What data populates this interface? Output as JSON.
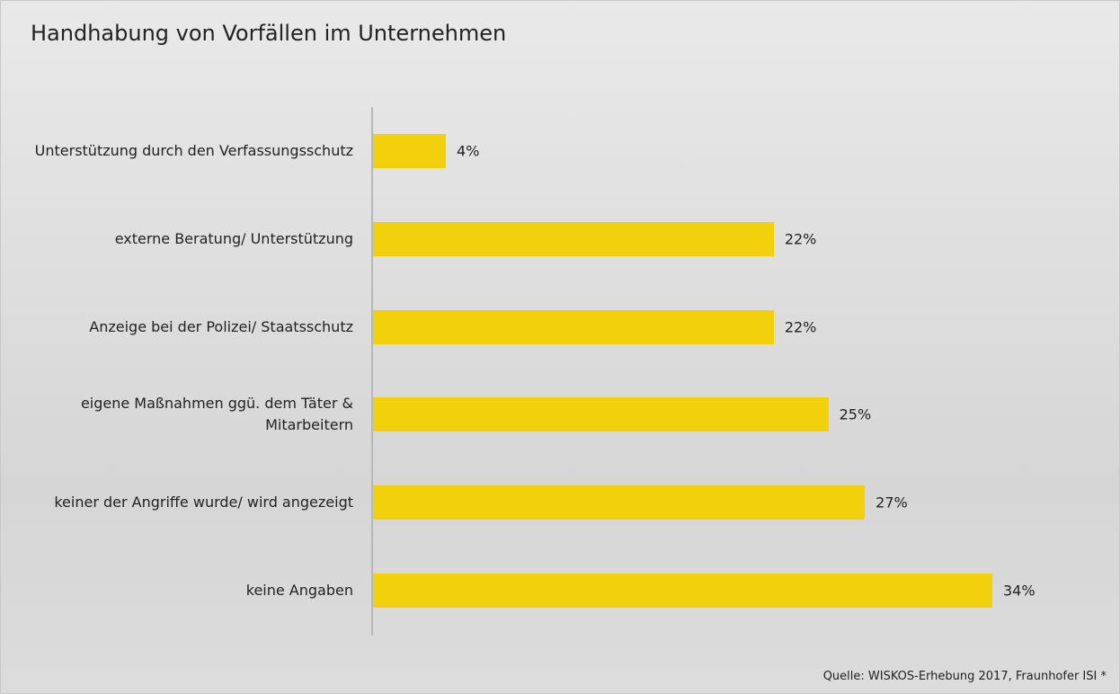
{
  "chart_data": {
    "type": "bar",
    "orientation": "horizontal",
    "title": "Handhabung von Vorfällen im Unternehmen",
    "categories": [
      "Unterstützung durch den Verfassungsschutz",
      "externe Beratung/ Unterstützung",
      "Anzeige bei der Polizei/ Staatsschutz",
      "eigene Maßnahmen ggü. dem Täter & Mitarbeitern",
      "keiner der Angriffe wurde/ wird angezeigt",
      "keine Angaben"
    ],
    "values": [
      4,
      22,
      22,
      25,
      27,
      34
    ],
    "value_labels": [
      "4%",
      "22%",
      "22%",
      "25%",
      "27%",
      "34%"
    ],
    "color": "#f2d00c",
    "source": "Quelle: WISKOS-Erhebung 2017, Fraunhofer ISI *"
  }
}
